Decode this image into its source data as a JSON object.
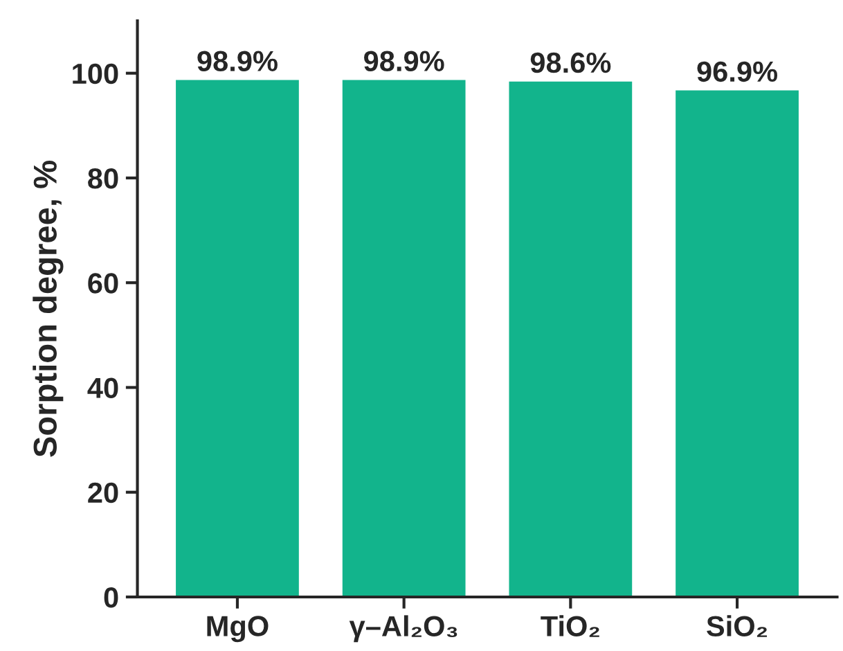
{
  "chart_data": {
    "type": "bar",
    "ylabel": "Sorption degree, %",
    "categories": [
      "MgO",
      "γ–Al₂O₃",
      "TiO₂",
      "SiO₂"
    ],
    "values": [
      98.9,
      98.9,
      98.6,
      96.9
    ],
    "value_labels": [
      "98.9%",
      "98.9%",
      "98.6%",
      "96.9%"
    ],
    "color": "#12b48c",
    "ylim": [
      0,
      110
    ],
    "yticks": [
      0,
      20,
      40,
      60,
      80,
      100
    ],
    "grid": false,
    "legend": false
  }
}
